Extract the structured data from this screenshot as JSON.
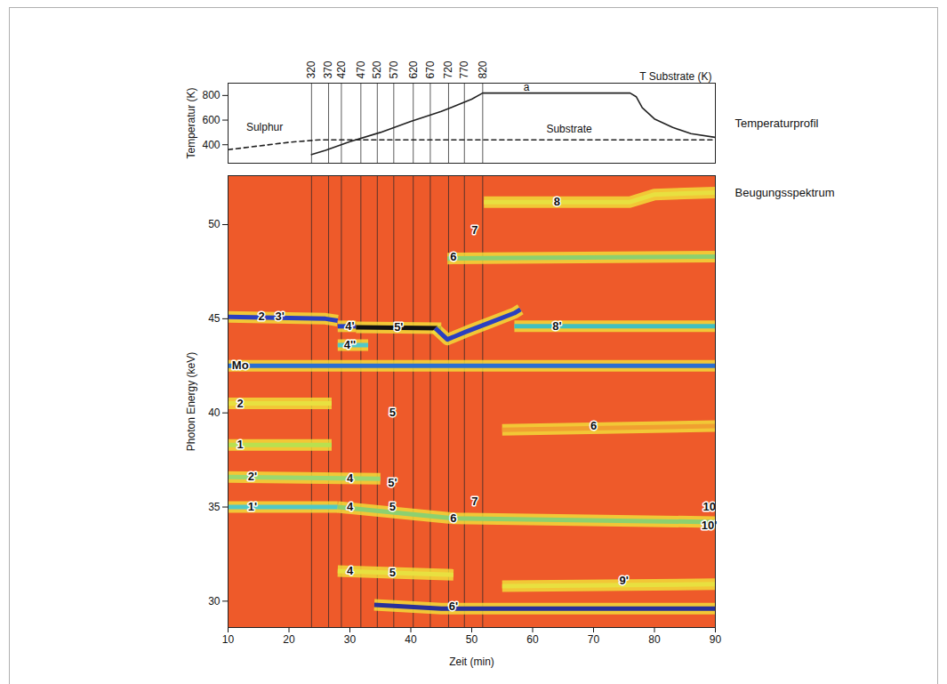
{
  "chart_data": [
    {
      "type": "line",
      "title": "T Substrate (K)",
      "side_label": "Temperaturprofil",
      "ylabel": "Temperatur (K)",
      "xlim": [
        10,
        90
      ],
      "ylim": [
        250,
        900
      ],
      "yticks": [
        400,
        600,
        800
      ],
      "tick_labels": "y",
      "markers": {
        "labels": [
          320,
          370,
          420,
          470,
          520,
          570,
          620,
          670,
          720,
          770,
          820
        ],
        "x": [
          23.7,
          26.5,
          28.6,
          31.8,
          34.5,
          37.2,
          40.4,
          43.2,
          46.2,
          48.8,
          51.8
        ]
      },
      "series": [
        {
          "color": "#222222",
          "line_style": "dashed",
          "x": [
            10,
            15,
            20,
            25,
            90
          ],
          "values": [
            360,
            390,
            420,
            440,
            440
          ]
        },
        {
          "color": "#222222",
          "line_style": "solid",
          "x": [
            23.7,
            26,
            30,
            35,
            40,
            45,
            50,
            51.8,
            76,
            77,
            78,
            80,
            83,
            86,
            90
          ],
          "values": [
            320,
            355,
            425,
            500,
            590,
            670,
            770,
            820,
            820,
            790,
            700,
            610,
            540,
            490,
            460
          ]
        }
      ],
      "annotations": [
        {
          "text": "Sulphur",
          "x": 16,
          "y": 540
        },
        {
          "text": "Substrate",
          "x": 66,
          "y": 530
        },
        {
          "text": "a",
          "x": 59,
          "y": 865
        }
      ]
    },
    {
      "type": "spectrum",
      "side_label": "Beugungsspektrum",
      "xlabel": "Zeit (min)",
      "ylabel": "Photon Energy (keV)",
      "xlim": [
        10,
        90
      ],
      "xticks": [
        10,
        20,
        30,
        40,
        50,
        60,
        70,
        80,
        90
      ],
      "ylim": [
        28.6,
        52.6
      ],
      "yticks": [
        30,
        35,
        40,
        45,
        50
      ],
      "bands": [
        {
          "color": "#2a3fc0",
          "x": [
            10,
            26,
            28
          ],
          "values": [
            45.1,
            45.0,
            44.9
          ]
        },
        {
          "color": "#2a3fc0",
          "x": [
            28,
            31
          ],
          "values": [
            44.6,
            44.6
          ]
        },
        {
          "color": "#111111",
          "x": [
            31,
            45
          ],
          "values": [
            44.55,
            44.5
          ]
        },
        {
          "color": "#2a3fc0",
          "x": [
            44,
            46,
            49,
            53,
            57,
            58
          ],
          "values": [
            44.5,
            43.9,
            44.3,
            44.8,
            45.3,
            45.5
          ]
        },
        {
          "color": "#50c8c8",
          "x": [
            28,
            33
          ],
          "values": [
            43.6,
            43.6
          ]
        },
        {
          "color": "#3fc0c0",
          "x": [
            57,
            90
          ],
          "values": [
            44.6,
            44.6
          ]
        },
        {
          "color": "#2a6fd0",
          "x": [
            10,
            90
          ],
          "values": [
            42.5,
            42.5
          ]
        },
        {
          "color": "#e8e040",
          "x": [
            10,
            27
          ],
          "values": [
            40.5,
            40.5
          ]
        },
        {
          "color": "#b8e050",
          "x": [
            10,
            27
          ],
          "values": [
            38.3,
            38.3
          ]
        },
        {
          "color": "#9ad870",
          "x": [
            10,
            35
          ],
          "values": [
            36.6,
            36.5
          ]
        },
        {
          "color": "#50c8c8",
          "x": [
            10,
            28
          ],
          "values": [
            35.0,
            35.0
          ]
        },
        {
          "color": "#8cd070",
          "x": [
            28,
            47,
            90
          ],
          "values": [
            35.0,
            34.4,
            34.2
          ]
        },
        {
          "color": "#e8e040",
          "x": [
            28,
            47
          ],
          "values": [
            31.6,
            31.4
          ]
        },
        {
          "color": "#28309a",
          "x": [
            34,
            45,
            90
          ],
          "values": [
            29.8,
            29.6,
            29.6
          ]
        },
        {
          "color": "#e8e040",
          "x": [
            55,
            90
          ],
          "values": [
            30.8,
            30.9
          ]
        },
        {
          "color": "#8cd070",
          "x": [
            46,
            90
          ],
          "values": [
            48.2,
            48.3
          ]
        },
        {
          "color": "#e8e040",
          "x": [
            52,
            76,
            80,
            90
          ],
          "values": [
            51.2,
            51.2,
            51.6,
            51.7
          ]
        },
        {
          "color": "#f0a030",
          "x": [
            55,
            90
          ],
          "values": [
            39.1,
            39.3
          ]
        }
      ],
      "labels": [
        {
          "text": "2",
          "x": 15.5,
          "y": 45.1
        },
        {
          "text": "3'",
          "x": 18.5,
          "y": 45.1
        },
        {
          "text": "4'",
          "x": 30,
          "y": 44.6
        },
        {
          "text": "4''",
          "x": 30,
          "y": 43.6
        },
        {
          "text": "5'",
          "x": 38,
          "y": 44.55
        },
        {
          "text": "Mo",
          "x": 12,
          "y": 42.5
        },
        {
          "text": "2",
          "x": 12,
          "y": 40.5
        },
        {
          "text": "1",
          "x": 12,
          "y": 38.3
        },
        {
          "text": "2'",
          "x": 14,
          "y": 36.6
        },
        {
          "text": "1'",
          "x": 14,
          "y": 35.0
        },
        {
          "text": "4",
          "x": 30,
          "y": 36.5
        },
        {
          "text": "4",
          "x": 30,
          "y": 35.0
        },
        {
          "text": "4",
          "x": 30,
          "y": 31.6
        },
        {
          "text": "5",
          "x": 37,
          "y": 40.0
        },
        {
          "text": "5'",
          "x": 37,
          "y": 36.3
        },
        {
          "text": "5",
          "x": 37,
          "y": 35.0
        },
        {
          "text": "5",
          "x": 37,
          "y": 31.5
        },
        {
          "text": "6'",
          "x": 47,
          "y": 29.7
        },
        {
          "text": "6",
          "x": 47,
          "y": 34.4
        },
        {
          "text": "7",
          "x": 50.5,
          "y": 35.3
        },
        {
          "text": "7",
          "x": 50.5,
          "y": 49.7
        },
        {
          "text": "6",
          "x": 47,
          "y": 48.3
        },
        {
          "text": "8",
          "x": 64,
          "y": 51.2
        },
        {
          "text": "8'",
          "x": 64,
          "y": 44.6
        },
        {
          "text": "6",
          "x": 70,
          "y": 39.3
        },
        {
          "text": "9'",
          "x": 75,
          "y": 31.1
        },
        {
          "text": "10",
          "x": 89,
          "y": 35.0
        },
        {
          "text": "10'",
          "x": 89,
          "y": 34.0
        }
      ]
    }
  ]
}
